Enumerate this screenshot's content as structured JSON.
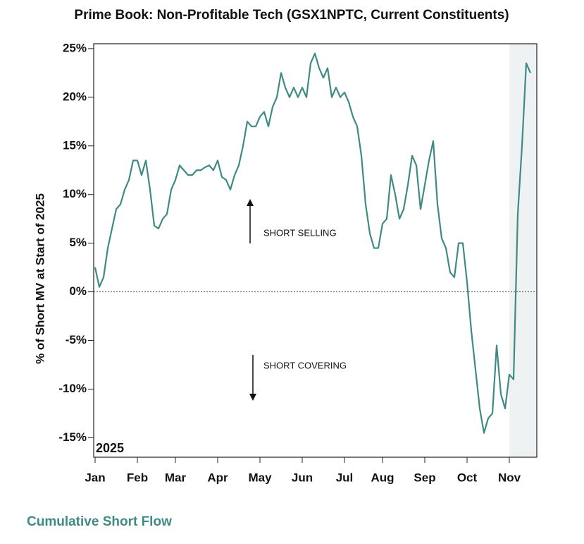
{
  "chart_data": {
    "type": "line",
    "title": "Prime Book: Non-Profitable Tech (GSX1NPTC, Current Constituents)",
    "y_label": "% of Short MV at Start of 2025",
    "year_label": "2025",
    "annotations": [
      "SHORT SELLING",
      "SHORT COVERING"
    ],
    "footer": "Cumulative Short Flow",
    "categories": [
      "Jan",
      null,
      null,
      null,
      null,
      null,
      null,
      null,
      null,
      null,
      "Feb",
      null,
      null,
      null,
      null,
      null,
      null,
      null,
      null,
      "Mar",
      null,
      null,
      null,
      null,
      null,
      null,
      null,
      null,
      null,
      "Apr",
      null,
      null,
      null,
      null,
      null,
      null,
      null,
      null,
      null,
      "May",
      null,
      null,
      null,
      null,
      null,
      null,
      null,
      null,
      null,
      "Jun",
      null,
      null,
      null,
      null,
      null,
      null,
      null,
      null,
      null,
      "Jul",
      null,
      null,
      null,
      null,
      null,
      null,
      null,
      null,
      "Aug",
      null,
      null,
      null,
      null,
      null,
      null,
      null,
      null,
      null,
      "Sep",
      null,
      null,
      null,
      null,
      null,
      null,
      null,
      null,
      null,
      "Oct",
      null,
      null,
      null,
      null,
      null,
      null,
      null,
      null,
      null,
      "Nov",
      null,
      null,
      null,
      null,
      null
    ],
    "series": [
      {
        "name": "GSX1NPTC",
        "color": "#3f8a84",
        "values": [
          2.5,
          0.5,
          1.5,
          4.5,
          6.5,
          8.5,
          9,
          10.5,
          11.5,
          13.5,
          13.5,
          12,
          13.5,
          10.5,
          6.8,
          6.5,
          7.5,
          8,
          10.5,
          11.5,
          13,
          12.5,
          12,
          12,
          12.5,
          12.5,
          12.8,
          13,
          12.5,
          13.5,
          11.8,
          11.5,
          10.5,
          12,
          13,
          15,
          17.5,
          17,
          17,
          18,
          18.5,
          17,
          19,
          20,
          22.5,
          21,
          20,
          21,
          20,
          21,
          20,
          23.5,
          24.5,
          23,
          22,
          23,
          20,
          21,
          20,
          20.5,
          19.5,
          18,
          17,
          14,
          9,
          6,
          4.5,
          4.5,
          7,
          7.5,
          12,
          10,
          7.5,
          8.5,
          11,
          14,
          13,
          8.5,
          11,
          13.5,
          15.5,
          9,
          5.5,
          4.5,
          2,
          1.5,
          5,
          5,
          1,
          -4,
          -8,
          -12,
          -14.5,
          -13,
          -12.5,
          -5.5,
          -10.5,
          -12,
          -8.5,
          -9,
          8,
          15,
          23.5,
          22.5
        ]
      }
    ],
    "ylim": [
      -17,
      25.5
    ],
    "yticks": [
      {
        "value": -15,
        "label": "-15%"
      },
      {
        "value": -10,
        "label": "-10%"
      },
      {
        "value": -5,
        "label": "-5%"
      },
      {
        "value": 0,
        "label": "0%"
      },
      {
        "value": 5,
        "label": "5%"
      },
      {
        "value": 10,
        "label": "10%"
      },
      {
        "value": 15,
        "label": "15%"
      },
      {
        "value": 20,
        "label": "20%"
      },
      {
        "value": 25,
        "label": "25%"
      }
    ],
    "shade_from": "Nov"
  }
}
